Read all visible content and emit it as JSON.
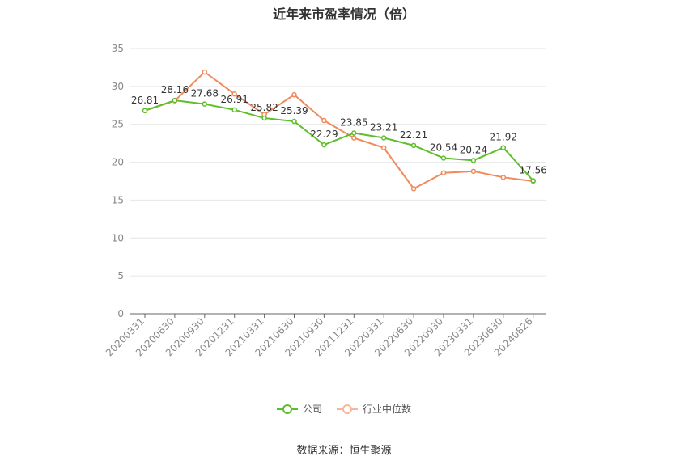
{
  "chart_data": {
    "type": "line",
    "title": "近年来市盈率情况（倍）",
    "categories": [
      "20200331",
      "20200630",
      "20200930",
      "20201231",
      "20210331",
      "20210630",
      "20210930",
      "20211231",
      "20220331",
      "20220630",
      "20220930",
      "20230331",
      "20230630",
      "20240826"
    ],
    "ylim": [
      0,
      35
    ],
    "yticks": [
      0,
      5,
      10,
      15,
      20,
      25,
      30,
      35
    ],
    "grid": true,
    "legend": "bottom-center",
    "series": [
      {
        "name": "公司",
        "color": "#5cbf2a",
        "values": [
          26.81,
          28.16,
          27.68,
          26.91,
          25.82,
          25.39,
          22.29,
          23.85,
          23.21,
          22.21,
          20.54,
          20.24,
          21.92,
          17.56
        ],
        "labels": [
          "26.81",
          "28.16",
          "27.68",
          "26.91",
          "25.82",
          "25.39",
          "22.29",
          "23.85",
          "23.21",
          "22.21",
          "20.54",
          "20.24",
          "21.92",
          "17.56"
        ]
      },
      {
        "name": "行业中位数",
        "color": "#f08a5d",
        "values": [
          26.8,
          28.1,
          31.9,
          29.0,
          26.3,
          28.9,
          25.5,
          23.2,
          21.9,
          16.5,
          18.6,
          18.8,
          18.0,
          17.5
        ]
      }
    ],
    "source": "数据来源：恒生聚源"
  }
}
